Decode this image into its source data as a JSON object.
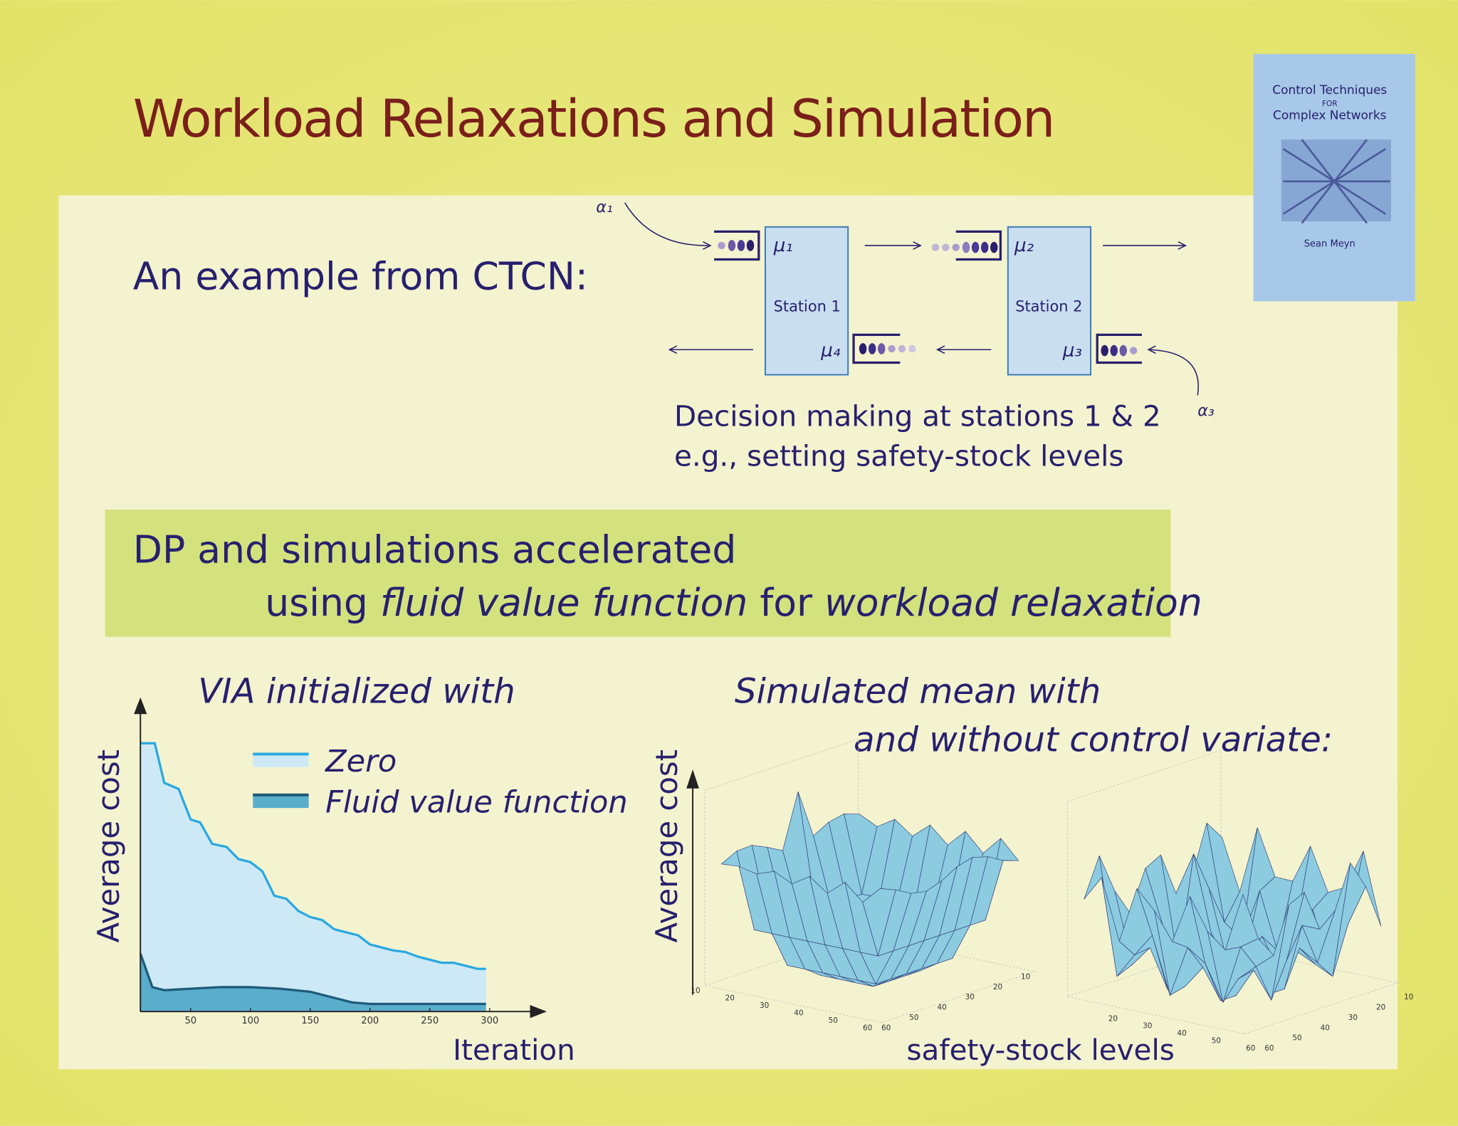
{
  "title": "Workload Relaxations and Simulation",
  "book": {
    "title_line1": "Control Techniques",
    "title_for": "FOR",
    "title_line2": "Complex Networks",
    "author": "Sean Meyn"
  },
  "intro": "An example from CTCN:",
  "network": {
    "stations": [
      "Station 1",
      "Station 2"
    ],
    "rates": [
      "μ₁",
      "μ₂",
      "μ₃",
      "μ₄"
    ],
    "arrivals": [
      "α₁",
      "α₃"
    ],
    "caption": [
      "Decision making at stations 1 & 2",
      "e.g., setting safety-stock levels"
    ]
  },
  "highlight": {
    "line1": "DP and simulations accelerated",
    "line2": [
      "using ",
      "fluid value function",
      " for ",
      "workload relaxation"
    ]
  },
  "via_chart": {
    "type": "area",
    "title": "VIA initialized with",
    "xlabel": "Iteration",
    "ylabel": "Average cost",
    "xlim": [
      8,
      340
    ],
    "ylim": [
      0,
      100
    ],
    "xticks": [
      50,
      100,
      150,
      200,
      250,
      300
    ],
    "series": [
      {
        "name": "Zero",
        "color": "#29a8e0",
        "fill": "#cde9f6",
        "x": [
          8,
          20,
          28,
          40,
          50,
          58,
          68,
          80,
          90,
          100,
          110,
          120,
          130,
          140,
          150,
          160,
          170,
          180,
          190,
          200,
          210,
          220,
          230,
          240,
          250,
          260,
          270,
          280,
          290,
          297
        ],
        "values": [
          88,
          88,
          75,
          73,
          63,
          62,
          55,
          54,
          50,
          49,
          46,
          38,
          37,
          33,
          31,
          30,
          27,
          26,
          25,
          22,
          21,
          20,
          19.5,
          18,
          17,
          16,
          16,
          15,
          14,
          14
        ]
      },
      {
        "name": "Fluid value function",
        "color": "#1e5a7a",
        "fill": "#5aaecc",
        "x": [
          8,
          18,
          28,
          50,
          75,
          100,
          125,
          150,
          170,
          185,
          200,
          297
        ],
        "values": [
          19,
          8,
          7,
          7.5,
          8,
          8,
          7.5,
          6.5,
          4.5,
          3,
          2.5,
          2.5
        ]
      }
    ]
  },
  "sim": {
    "title_line1": "Simulated mean with",
    "title_line2": "and without control variate:",
    "ylabel": "Average cost",
    "xlabel": "safety-stock levels",
    "plots": [
      {
        "i_ticks": [
          "10",
          "20",
          "30",
          "40",
          "50",
          "60"
        ],
        "j_ticks": [
          "60",
          "50",
          "40",
          "30",
          "20",
          "10"
        ]
      },
      {
        "i_ticks": [
          "20",
          "30",
          "40",
          "50",
          "60"
        ],
        "j_ticks": [
          "60",
          "50",
          "40",
          "30",
          "20",
          "10"
        ]
      }
    ]
  }
}
